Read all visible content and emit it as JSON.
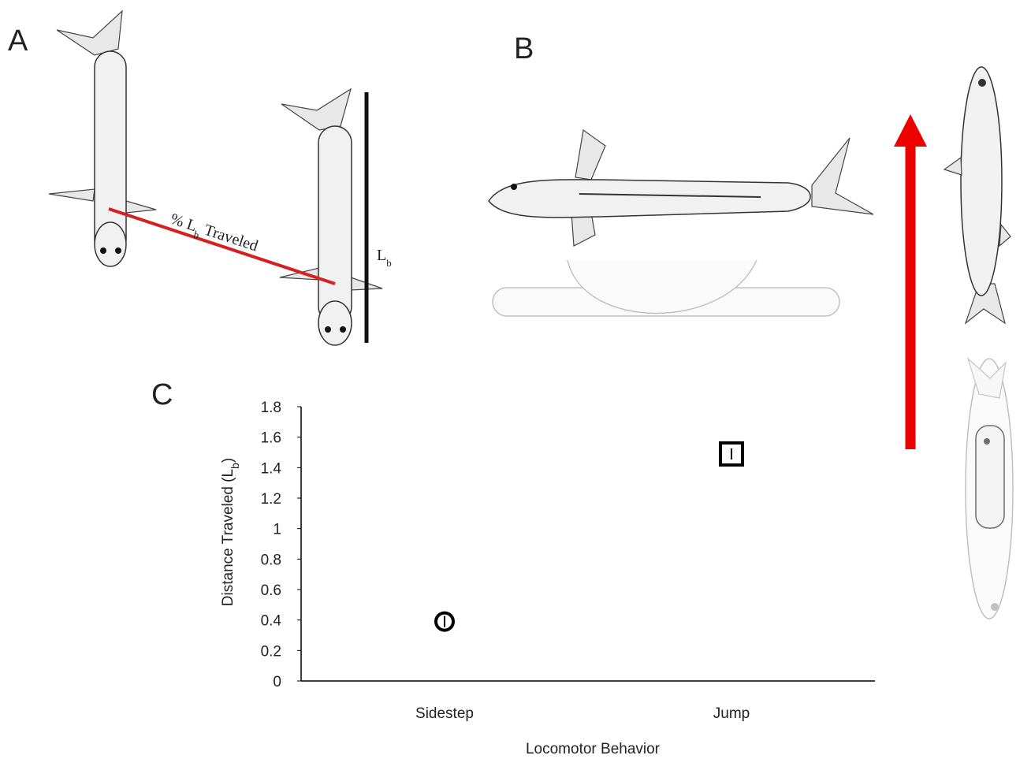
{
  "panels": {
    "a": "A",
    "b": "B",
    "c": "C"
  },
  "annotations": {
    "traveled": [
      "% L",
      "b",
      " Traveled"
    ],
    "body_length": [
      "L",
      "b"
    ]
  },
  "chart_data": {
    "type": "scatter",
    "categories": [
      "Sidestep",
      "Jump"
    ],
    "values": [
      0.39,
      1.49
    ],
    "markers": [
      "circle",
      "square"
    ],
    "color": "#000000",
    "xlabel": "Locomotor Behavior",
    "ylabel": [
      "Distance Traveled (L",
      "b",
      ")"
    ],
    "ylim": [
      0,
      1.8
    ],
    "yticks": [
      0,
      0.2,
      0.4,
      0.6,
      0.8,
      1,
      1.2,
      1.4,
      1.6,
      1.8
    ]
  }
}
